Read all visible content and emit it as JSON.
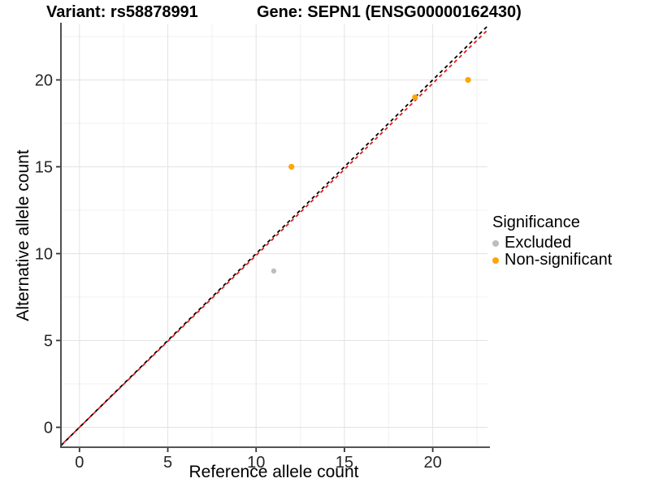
{
  "chart_data": {
    "type": "scatter",
    "title_left": "Variant: rs58878991",
    "title_right": "Gene: SEPN1 (ENSG00000162430)",
    "xlabel": "Reference allele count",
    "ylabel": "Alternative allele count",
    "xlim": [
      -1.05,
      23.1
    ],
    "ylim": [
      -1.1,
      23.2
    ],
    "x_ticks": [
      0,
      5,
      10,
      15,
      20
    ],
    "y_ticks": [
      0,
      5,
      10,
      15,
      20
    ],
    "x_minor_ticks": [
      2.5,
      7.5,
      12.5,
      17.5,
      22.5
    ],
    "y_minor_ticks": [
      2.5,
      7.5,
      12.5,
      17.5,
      22.5
    ],
    "grid": "major-and-minor",
    "series": [
      {
        "name": "Excluded",
        "color": "#bebebe",
        "point_radius": 3.2,
        "points": [
          [
            11,
            9
          ]
        ]
      },
      {
        "name": "Non-significant",
        "color": "#ffa500",
        "point_radius": 3.6,
        "points": [
          [
            12,
            15
          ],
          [
            19,
            19
          ],
          [
            22,
            20
          ]
        ]
      }
    ],
    "reference_lines": [
      {
        "name": "identity-line",
        "color": "#000000",
        "style": "dashed",
        "slope": 1.0,
        "intercept": 0,
        "dash": [
          4.5,
          4
        ],
        "dash_offset": 0
      },
      {
        "name": "fitted-line",
        "color": "#e41a1c",
        "style": "dashed",
        "slope": 0.99,
        "intercept": 0,
        "dash": [
          4.5,
          4
        ],
        "dash_offset": 4.25
      }
    ],
    "legend": {
      "title": "Significance",
      "position": "right",
      "entries": [
        {
          "label": "Excluded",
          "color": "#bebebe"
        },
        {
          "label": "Non-significant",
          "color": "#ffa500"
        }
      ]
    },
    "style": {
      "panel_background": "#ffffff",
      "grid_major_color": "#e3e3e3",
      "grid_minor_color": "#f0f0f0",
      "axis_line_color": "#3c3c3c",
      "tick_color": "#333333",
      "tick_label_color": "#262626",
      "tick_label_size": 20
    }
  }
}
